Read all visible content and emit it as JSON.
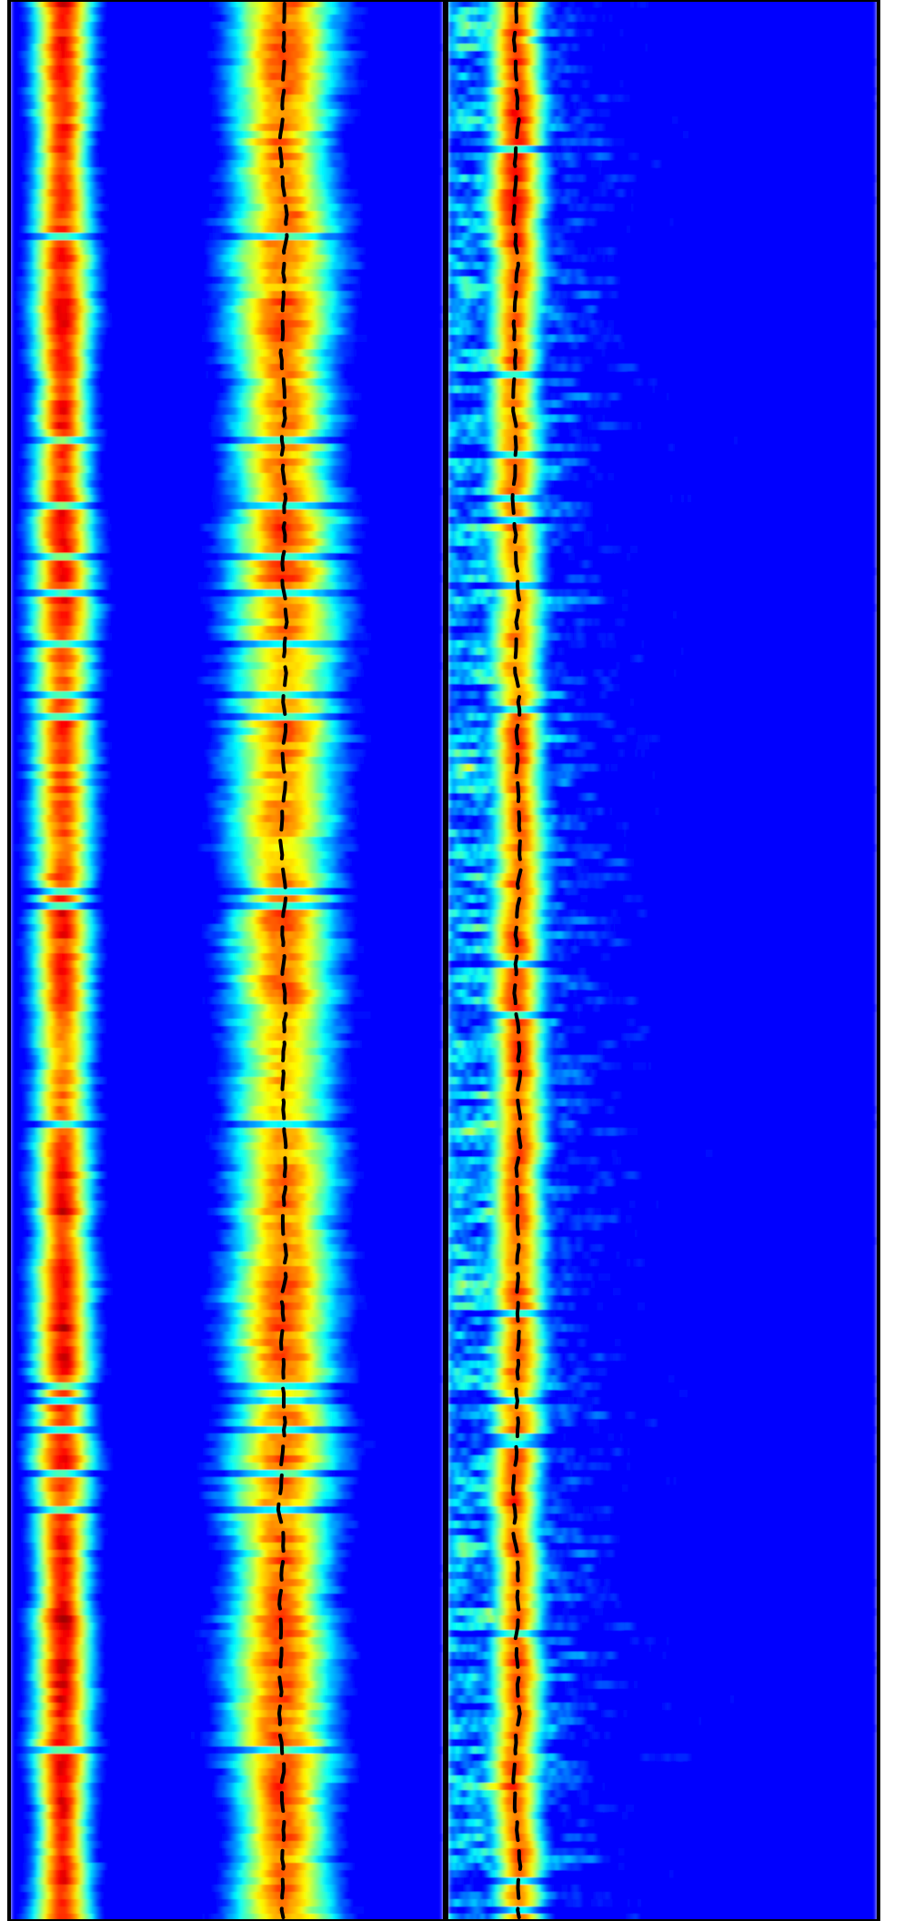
{
  "chart_data": {
    "type": "heatmap",
    "title": "",
    "xlabel": "",
    "ylabel": "",
    "colormap": "jet",
    "colors": {
      "low": "#0000ff",
      "mid_low": "#00ffff",
      "mid": "#7fff00",
      "mid_high": "#ffff00",
      "high_mid": "#ff8c00",
      "high": "#ff0000",
      "ridge_line": "#000000",
      "frame": "#000000"
    },
    "grid": false,
    "legend": "none",
    "panels": [
      {
        "name": "left",
        "features": [
          {
            "center": 0.12,
            "width": 0.1,
            "peak": 0.95,
            "role": "bright-band"
          },
          {
            "center": 0.63,
            "width": 0.18,
            "peak": 0.85,
            "role": "main-band"
          }
        ],
        "ridge_center": 0.63
      },
      {
        "name": "right",
        "features": [
          {
            "center": 0.16,
            "width": 0.1,
            "peak": 0.88,
            "role": "main-band"
          }
        ],
        "ridge_center": 0.16
      }
    ]
  }
}
